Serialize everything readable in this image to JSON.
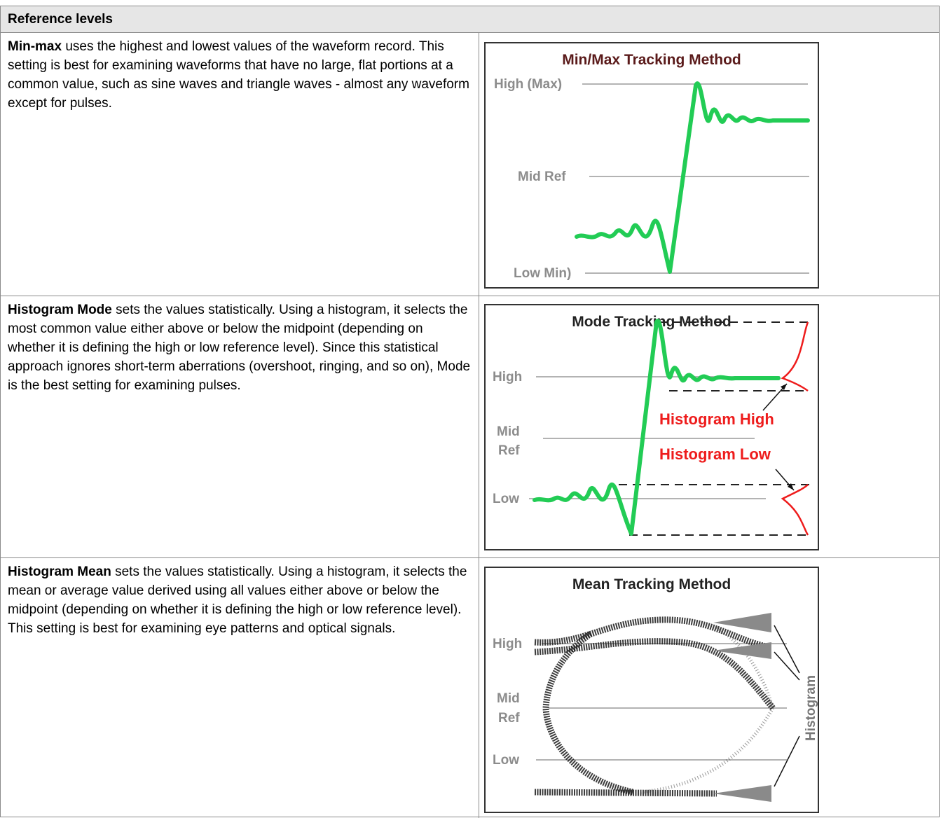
{
  "table": {
    "header": "Reference levels",
    "rows": [
      {
        "term": "Min-max",
        "description": "uses the highest and lowest values of the waveform record. This setting is best for examining waveforms that have no large, flat portions at a common value, such as sine waves and triangle waves - almost any waveform except for pulses.",
        "figure": {
          "title": "Min/Max Tracking Method",
          "labels": [
            "High (Max)",
            "Mid Ref",
            "Low Min)"
          ]
        }
      },
      {
        "term": "Histogram Mode",
        "description": "sets the values statistically. Using a histogram, it selects the most common value either above or below the midpoint (depending on whether it is defining the high or low reference level). Since this statistical approach ignores short-term aberrations (overshoot, ringing, and so on), Mode is the best setting for examining pulses.",
        "figure": {
          "title": "Mode Tracking Method",
          "labels": [
            "High",
            "Mid",
            "Ref",
            "Low",
            "Histogram High",
            "Histogram Low"
          ]
        }
      },
      {
        "term": "Histogram Mean",
        "description": "sets the values statistically. Using a histogram, it selects the mean or average value derived using all values either above or below the midpoint (depending on whether it is defining the high or low reference level). This setting is best for examining eye patterns and optical signals.",
        "figure": {
          "title": "Mean Tracking Method",
          "labels": [
            "High",
            "Mid",
            "Ref",
            "Low",
            "Histogram"
          ]
        }
      }
    ]
  }
}
